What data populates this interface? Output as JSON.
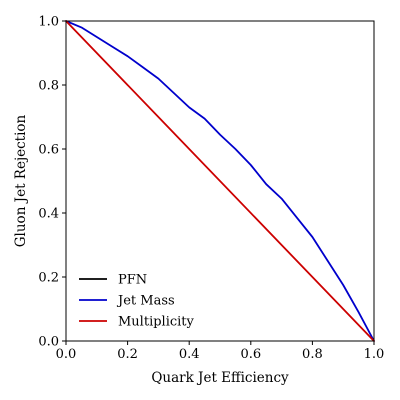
{
  "chart_data": {
    "type": "line",
    "title": "",
    "xlabel": "Quark Jet Efficiency",
    "ylabel": "Gluon Jet Rejection",
    "xlim": [
      0.0,
      1.0
    ],
    "ylim": [
      0.0,
      1.0
    ],
    "xticks": [
      0.0,
      0.2,
      0.4,
      0.6,
      0.8,
      1.0
    ],
    "yticks": [
      0.0,
      0.2,
      0.4,
      0.6,
      0.8,
      1.0
    ],
    "xtick_labels": [
      "0.0",
      "0.2",
      "0.4",
      "0.6",
      "0.8",
      "1.0"
    ],
    "ytick_labels": [
      "0.0",
      "0.2",
      "0.4",
      "0.6",
      "0.8",
      "1.0"
    ],
    "grid": false,
    "legend_position": "lower-left",
    "series": [
      {
        "name": "PFN",
        "color": "#000000",
        "x": [],
        "y": []
      },
      {
        "name": "Jet Mass",
        "color": "#0000cc",
        "x": [
          0.0,
          0.05,
          0.1,
          0.15,
          0.2,
          0.25,
          0.3,
          0.35,
          0.4,
          0.45,
          0.5,
          0.55,
          0.6,
          0.65,
          0.7,
          0.75,
          0.8,
          0.85,
          0.9,
          0.95,
          1.0
        ],
        "y": [
          1.0,
          0.98,
          0.95,
          0.92,
          0.89,
          0.855,
          0.82,
          0.775,
          0.73,
          0.695,
          0.645,
          0.6,
          0.55,
          0.49,
          0.445,
          0.385,
          0.325,
          0.25,
          0.175,
          0.09,
          0.0
        ]
      },
      {
        "name": "Multiplicity",
        "color": "#cc0000",
        "x": [
          0.0,
          1.0
        ],
        "y": [
          1.0,
          0.0
        ]
      }
    ]
  }
}
